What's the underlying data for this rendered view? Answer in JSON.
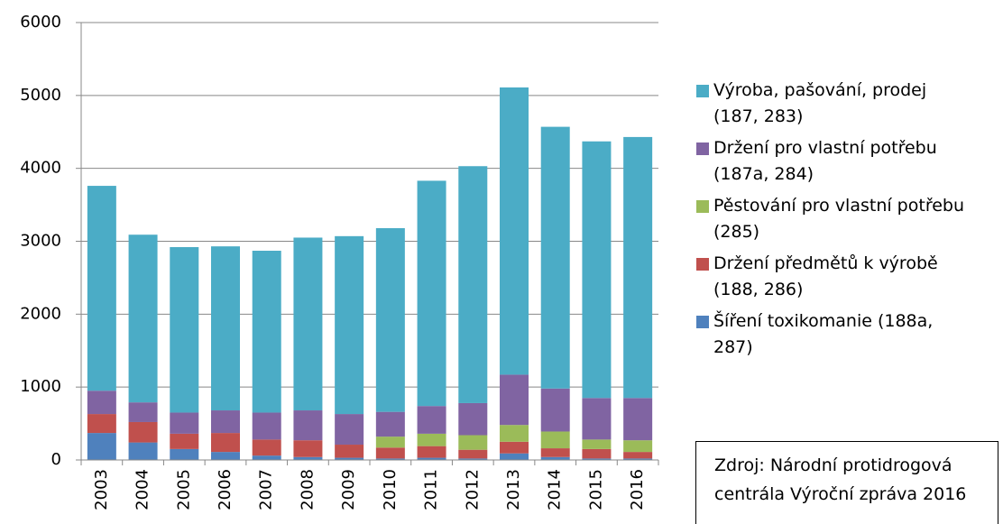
{
  "chart_data": {
    "type": "stacked_bar",
    "categories": [
      "2003",
      "2004",
      "2005",
      "2006",
      "2007",
      "2008",
      "2009",
      "2010",
      "2011",
      "2012",
      "2013",
      "2014",
      "2015",
      "2016"
    ],
    "series": [
      {
        "name": "Šíření toxikomanie (188a,\n287)",
        "color": "#4f81bd",
        "values": [
          370,
          240,
          150,
          110,
          60,
          40,
          30,
          20,
          30,
          20,
          90,
          40,
          20,
          20
        ]
      },
      {
        "name": "Držení předmětů k výrobě\n(188, 286)",
        "color": "#c0504d",
        "values": [
          260,
          280,
          210,
          260,
          220,
          230,
          180,
          150,
          160,
          120,
          160,
          120,
          130,
          90
        ]
      },
      {
        "name": "Pěstování pro vlastní potřebu\n(285)",
        "color": "#9bbb59",
        "values": [
          0,
          0,
          0,
          0,
          0,
          0,
          0,
          150,
          170,
          200,
          230,
          230,
          130,
          160
        ]
      },
      {
        "name": "Držení pro vlastní potřebu\n(187a, 284)",
        "color": "#8064a2",
        "values": [
          320,
          270,
          290,
          310,
          370,
          410,
          420,
          340,
          380,
          440,
          690,
          590,
          570,
          580
        ]
      },
      {
        "name": "Výroba, pašování, prodej\n(187, 283)",
        "color": "#4bacc6",
        "values": [
          2810,
          2300,
          2270,
          2250,
          2220,
          2370,
          2440,
          2520,
          3090,
          3250,
          3940,
          3590,
          3520,
          3580
        ]
      }
    ],
    "ylim": [
      0,
      6000
    ],
    "yticks": [
      0,
      1000,
      2000,
      3000,
      4000,
      5000,
      6000
    ],
    "grid": true,
    "source": "Zdroj:  Národní protidrogová centrála Výroční zpráva 2016"
  }
}
